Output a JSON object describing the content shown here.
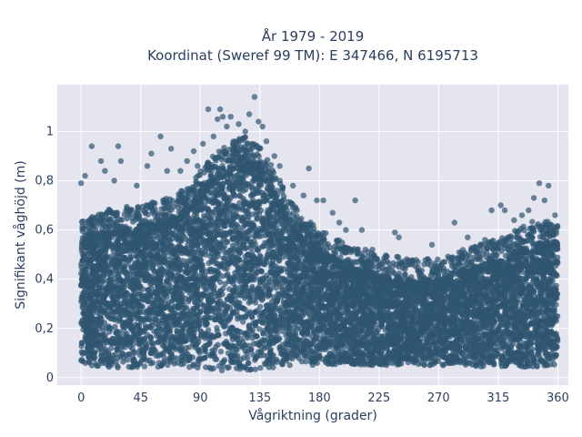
{
  "chart_data": {
    "type": "scatter",
    "title": "År 1979 - 2019",
    "subtitle": "Koordinat (Sweref 99 TM): E 347466, N 6195713",
    "xlabel": "Vågriktning (grader)",
    "ylabel": "Signifikant våghöjd (m)",
    "xlim": [
      -18,
      368
    ],
    "ylim": [
      -0.03,
      1.19
    ],
    "xticks": [
      0,
      45,
      90,
      135,
      180,
      225,
      270,
      315,
      360
    ],
    "xtick_labels": [
      "0",
      "45",
      "90",
      "135",
      "180",
      "225",
      "270",
      "315",
      "360"
    ],
    "yticks": [
      0,
      0.2,
      0.4,
      0.6,
      0.8,
      1
    ],
    "ytick_labels": [
      "0",
      "0,2",
      "0,4",
      "0,6",
      "0,8",
      "1"
    ],
    "grid": true,
    "background_color": "#e5e5f0",
    "marker_color": "#2f5570",
    "marker_opacity": 0.7,
    "envelope": {
      "description": "dense band of points spanning direction 0-360; upper edge of dense band by direction",
      "x": [
        0,
        20,
        45,
        70,
        85,
        100,
        115,
        125,
        135,
        150,
        165,
        180,
        200,
        225,
        250,
        270,
        290,
        315,
        340,
        360
      ],
      "y_low": [
        0.05,
        0.04,
        0.04,
        0.04,
        0.04,
        0.03,
        0.03,
        0.03,
        0.03,
        0.04,
        0.05,
        0.05,
        0.05,
        0.05,
        0.05,
        0.05,
        0.05,
        0.04,
        0.04,
        0.05
      ],
      "y_high": [
        0.55,
        0.6,
        0.62,
        0.65,
        0.72,
        0.82,
        0.88,
        0.9,
        0.86,
        0.72,
        0.58,
        0.52,
        0.46,
        0.42,
        0.4,
        0.4,
        0.44,
        0.48,
        0.55,
        0.55
      ]
    },
    "outliers": [
      {
        "x": 0,
        "y": 0.79
      },
      {
        "x": 3,
        "y": 0.82
      },
      {
        "x": 8,
        "y": 0.94
      },
      {
        "x": 15,
        "y": 0.88
      },
      {
        "x": 18,
        "y": 0.84
      },
      {
        "x": 25,
        "y": 0.8
      },
      {
        "x": 28,
        "y": 0.94
      },
      {
        "x": 30,
        "y": 0.88
      },
      {
        "x": 42,
        "y": 0.78
      },
      {
        "x": 50,
        "y": 0.86
      },
      {
        "x": 53,
        "y": 0.91
      },
      {
        "x": 60,
        "y": 0.98
      },
      {
        "x": 65,
        "y": 0.84
      },
      {
        "x": 68,
        "y": 0.93
      },
      {
        "x": 75,
        "y": 0.84
      },
      {
        "x": 80,
        "y": 0.88
      },
      {
        "x": 85,
        "y": 0.92
      },
      {
        "x": 88,
        "y": 0.86
      },
      {
        "x": 92,
        "y": 0.95
      },
      {
        "x": 96,
        "y": 1.09
      },
      {
        "x": 100,
        "y": 0.98
      },
      {
        "x": 103,
        "y": 1.05
      },
      {
        "x": 105,
        "y": 1.09
      },
      {
        "x": 107,
        "y": 1.06
      },
      {
        "x": 110,
        "y": 1.02
      },
      {
        "x": 113,
        "y": 1.06
      },
      {
        "x": 116,
        "y": 0.96
      },
      {
        "x": 119,
        "y": 1.03
      },
      {
        "x": 124,
        "y": 1.0
      },
      {
        "x": 127,
        "y": 1.07
      },
      {
        "x": 131,
        "y": 1.14
      },
      {
        "x": 134,
        "y": 1.04
      },
      {
        "x": 137,
        "y": 1.02
      },
      {
        "x": 140,
        "y": 0.96
      },
      {
        "x": 146,
        "y": 0.9
      },
      {
        "x": 150,
        "y": 0.86
      },
      {
        "x": 160,
        "y": 0.78
      },
      {
        "x": 168,
        "y": 0.74
      },
      {
        "x": 172,
        "y": 0.85
      },
      {
        "x": 178,
        "y": 0.72
      },
      {
        "x": 183,
        "y": 0.72
      },
      {
        "x": 190,
        "y": 0.67
      },
      {
        "x": 195,
        "y": 0.63
      },
      {
        "x": 200,
        "y": 0.6
      },
      {
        "x": 207,
        "y": 0.72
      },
      {
        "x": 212,
        "y": 0.6
      },
      {
        "x": 220,
        "y": 0.52
      },
      {
        "x": 237,
        "y": 0.59
      },
      {
        "x": 240,
        "y": 0.57
      },
      {
        "x": 265,
        "y": 0.54
      },
      {
        "x": 282,
        "y": 0.63
      },
      {
        "x": 292,
        "y": 0.57
      },
      {
        "x": 305,
        "y": 0.56
      },
      {
        "x": 310,
        "y": 0.68
      },
      {
        "x": 317,
        "y": 0.7
      },
      {
        "x": 320,
        "y": 0.68
      },
      {
        "x": 327,
        "y": 0.64
      },
      {
        "x": 333,
        "y": 0.66
      },
      {
        "x": 338,
        "y": 0.68
      },
      {
        "x": 342,
        "y": 0.73
      },
      {
        "x": 346,
        "y": 0.79
      },
      {
        "x": 350,
        "y": 0.72
      },
      {
        "x": 353,
        "y": 0.78
      },
      {
        "x": 358,
        "y": 0.66
      }
    ]
  }
}
